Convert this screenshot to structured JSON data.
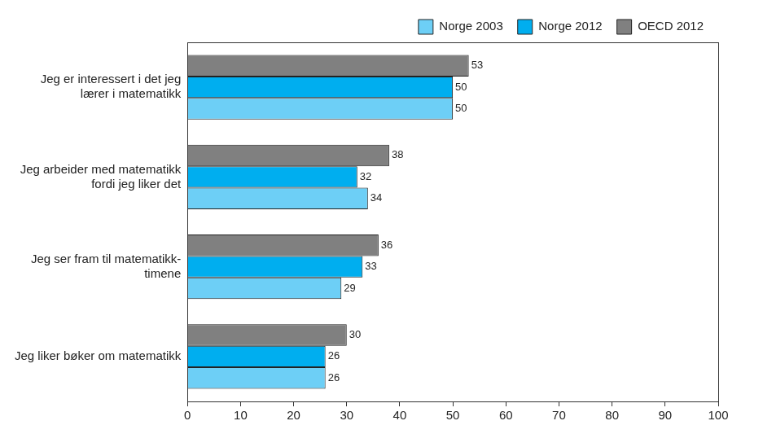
{
  "chart_data": {
    "type": "bar",
    "orientation": "horizontal",
    "categories": [
      [
        "Jeg er interessert i det jeg",
        "lærer i matematikk"
      ],
      [
        "Jeg arbeider med matematikk",
        "fordi jeg liker det"
      ],
      [
        "Jeg ser fram til matematikk-",
        "timene"
      ],
      [
        "Jeg liker bøker om matematikk"
      ]
    ],
    "series": [
      {
        "name": "Norge 2003",
        "color": "#6dcff6",
        "values": [
          50,
          34,
          29,
          26
        ]
      },
      {
        "name": "Norge 2012",
        "color": "#00aeef",
        "values": [
          50,
          32,
          33,
          26
        ]
      },
      {
        "name": "OECD 2012",
        "color": "#808080",
        "values": [
          53,
          38,
          36,
          30
        ]
      }
    ],
    "xlim": [
      0,
      100
    ],
    "xticks": [
      0,
      10,
      20,
      30,
      40,
      50,
      60,
      70,
      80,
      90,
      100
    ],
    "grid": false,
    "legend": "top-right",
    "data_labels": true
  }
}
